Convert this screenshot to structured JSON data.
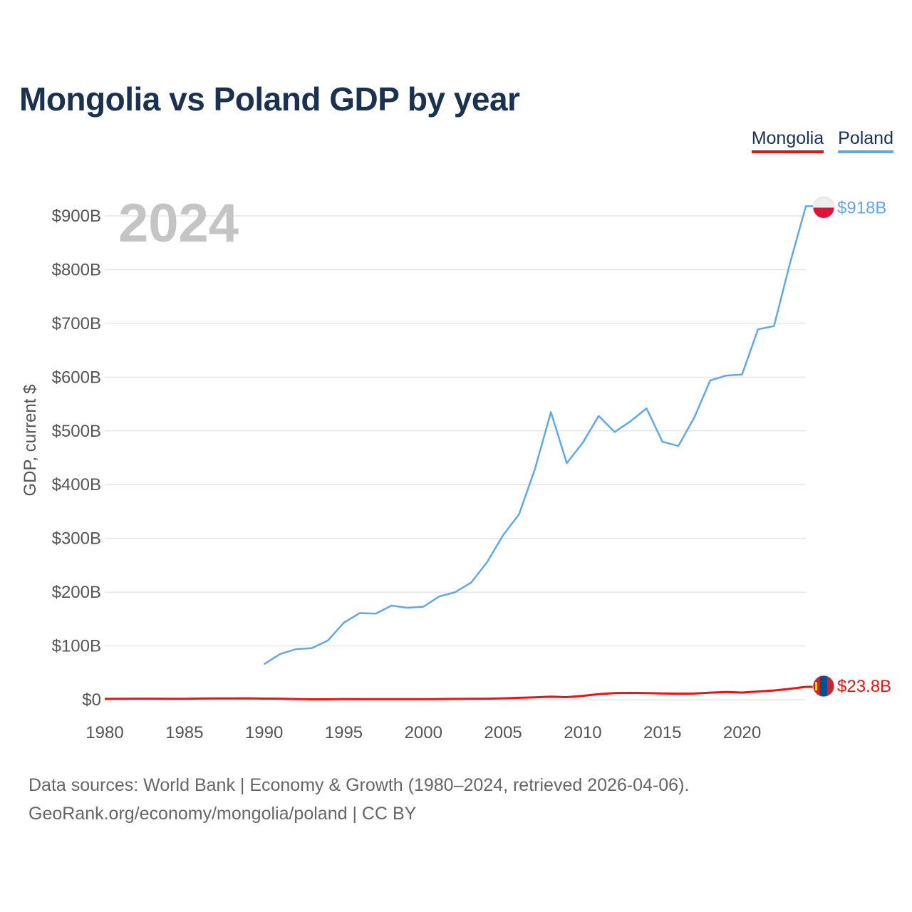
{
  "title": "Mongolia vs Poland GDP by year",
  "legend": {
    "mongolia": "Mongolia",
    "poland": "Poland"
  },
  "footer": {
    "line1": "Data sources: World Bank | Economy & Growth (1980–2024, retrieved 2026-04-06).",
    "line2": "GeoRank.org/economy/mongolia/poland | CC BY"
  },
  "colors": {
    "mongolia": "#ee1111",
    "poland": "#62a8e5",
    "title": "#1a3150",
    "year": "#c4c4c4"
  },
  "chart_data": {
    "type": "line",
    "title": "Mongolia vs Poland GDP by year",
    "ylabel": "GDP, current $",
    "xlabel": "",
    "current_year": "2024",
    "xlim": [
      1980,
      2024
    ],
    "ylim": [
      0,
      900
    ],
    "unit": "billions of current US$",
    "y_ticks": [
      {
        "value": 0,
        "label": "$0"
      },
      {
        "value": 100,
        "label": "$100B"
      },
      {
        "value": 200,
        "label": "$200B"
      },
      {
        "value": 300,
        "label": "$300B"
      },
      {
        "value": 400,
        "label": "$400B"
      },
      {
        "value": 500,
        "label": "$500B"
      },
      {
        "value": 600,
        "label": "$600B"
      },
      {
        "value": 700,
        "label": "$700B"
      },
      {
        "value": 800,
        "label": "$800B"
      },
      {
        "value": 900,
        "label": "$900B"
      }
    ],
    "x_ticks": [
      1980,
      1985,
      1990,
      1995,
      2000,
      2005,
      2010,
      2015,
      2020
    ],
    "series": [
      {
        "name": "Poland",
        "key": "poland",
        "end_label": "$918B",
        "x": [
          1990,
          1991,
          1992,
          1993,
          1994,
          1995,
          1996,
          1997,
          1998,
          1999,
          2000,
          2001,
          2002,
          2003,
          2004,
          2005,
          2006,
          2007,
          2008,
          2009,
          2010,
          2011,
          2012,
          2013,
          2014,
          2015,
          2016,
          2017,
          2018,
          2019,
          2020,
          2021,
          2022,
          2023,
          2024
        ],
        "values": [
          66,
          85,
          94,
          96,
          110,
          143,
          161,
          160,
          175,
          171,
          173,
          192,
          200,
          218,
          256,
          306,
          345,
          429,
          535,
          440,
          478,
          528,
          498,
          518,
          542,
          480,
          472,
          525,
          594,
          603,
          605,
          689,
          695,
          811,
          918
        ]
      },
      {
        "name": "Mongolia",
        "key": "mongolia",
        "end_label": "$23.8B",
        "x": [
          1980,
          1981,
          1982,
          1983,
          1984,
          1985,
          1986,
          1987,
          1988,
          1989,
          1990,
          1991,
          1992,
          1993,
          1994,
          1995,
          1996,
          1997,
          1998,
          1999,
          2000,
          2001,
          2002,
          2003,
          2004,
          2005,
          2006,
          2007,
          2008,
          2009,
          2010,
          2011,
          2012,
          2013,
          2014,
          2015,
          2016,
          2017,
          2018,
          2019,
          2020,
          2021,
          2022,
          2023,
          2024
        ],
        "values": [
          1.5,
          1.6,
          1.8,
          1.8,
          1.6,
          1.7,
          2.1,
          2.2,
          2.3,
          2.5,
          2.0,
          1.9,
          1.2,
          0.6,
          0.7,
          1.2,
          1.1,
          1.1,
          1.0,
          1.0,
          1.1,
          1.2,
          1.4,
          1.6,
          1.9,
          2.5,
          3.4,
          4.2,
          5.6,
          4.6,
          7.2,
          10.4,
          12.3,
          12.6,
          12.2,
          11.7,
          11.2,
          11.4,
          13.1,
          14.2,
          13.3,
          15.3,
          17.1,
          20.3,
          23.8
        ]
      }
    ]
  }
}
